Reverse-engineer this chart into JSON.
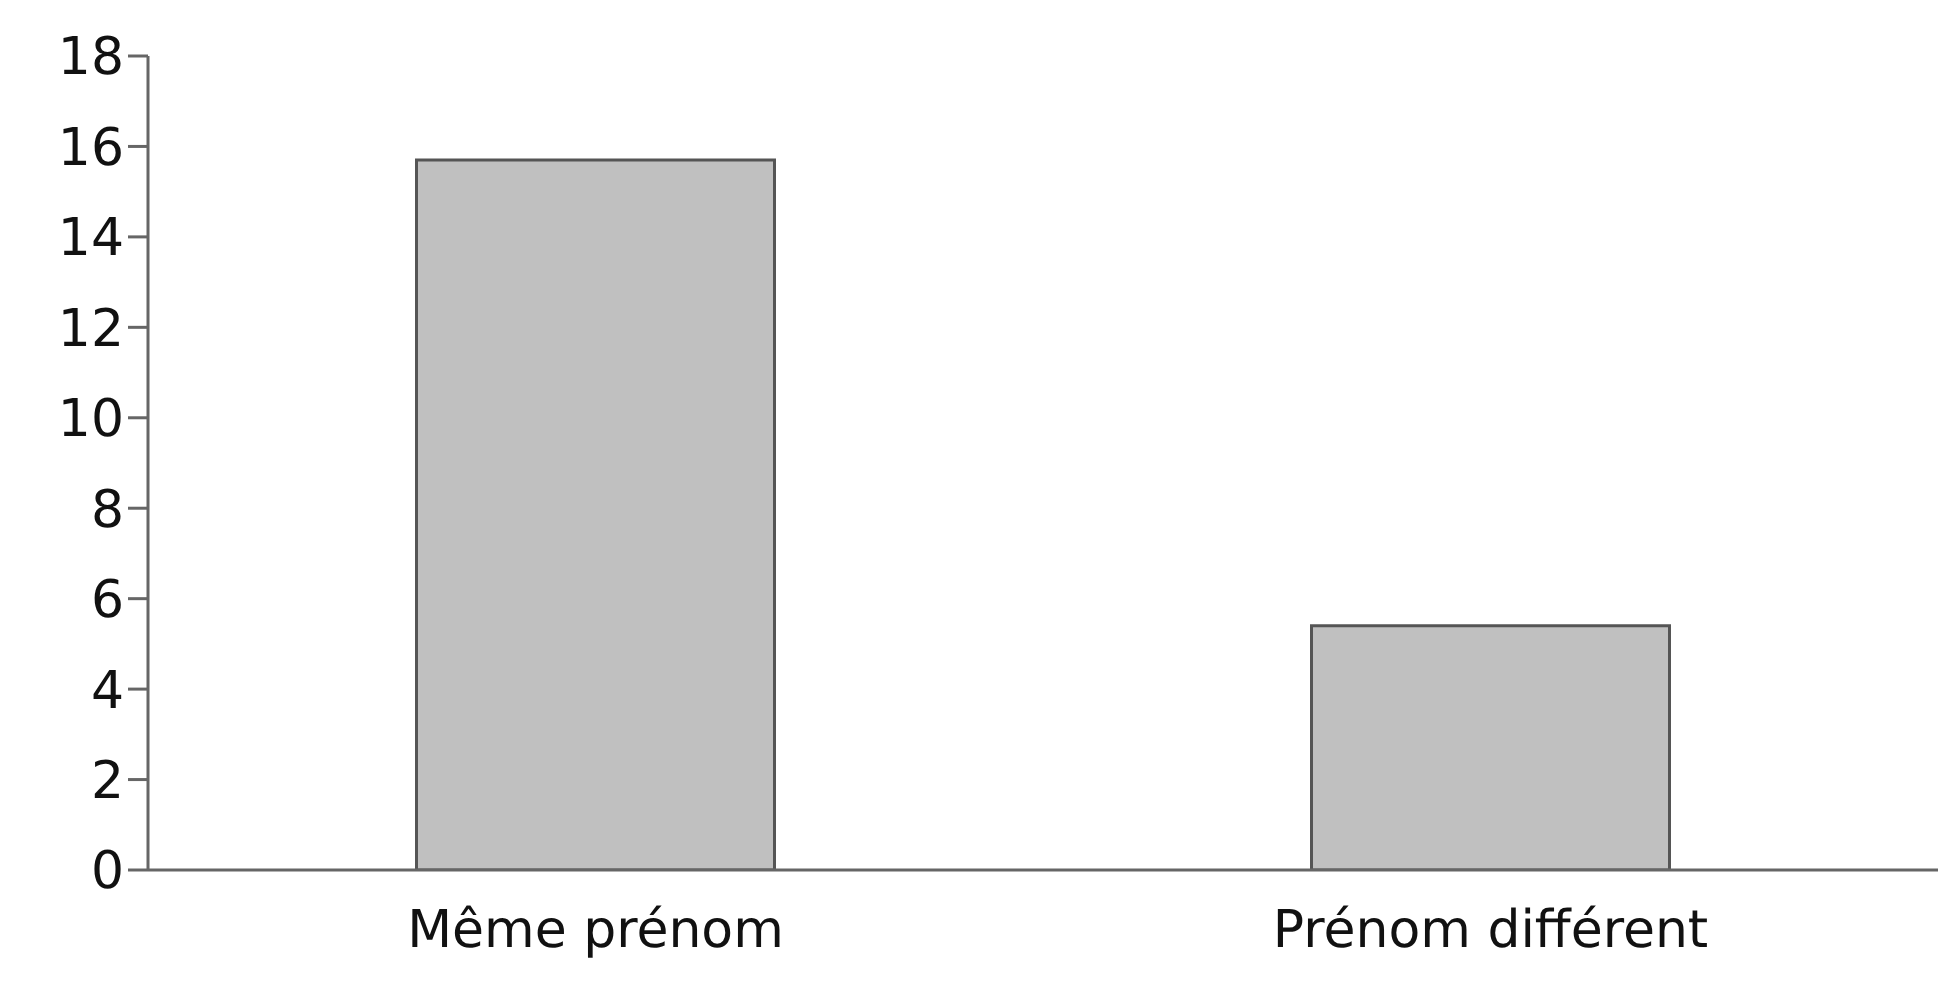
{
  "chart_data": {
    "type": "bar",
    "categories": [
      "Même prénom",
      "Prénom différent"
    ],
    "values": [
      15.7,
      5.4
    ],
    "color": "#c0c0c0",
    "ylim": [
      0,
      18
    ],
    "yticks": [
      0,
      2,
      4,
      6,
      8,
      10,
      12,
      14,
      16,
      18
    ],
    "grid": false,
    "legend": false
  }
}
